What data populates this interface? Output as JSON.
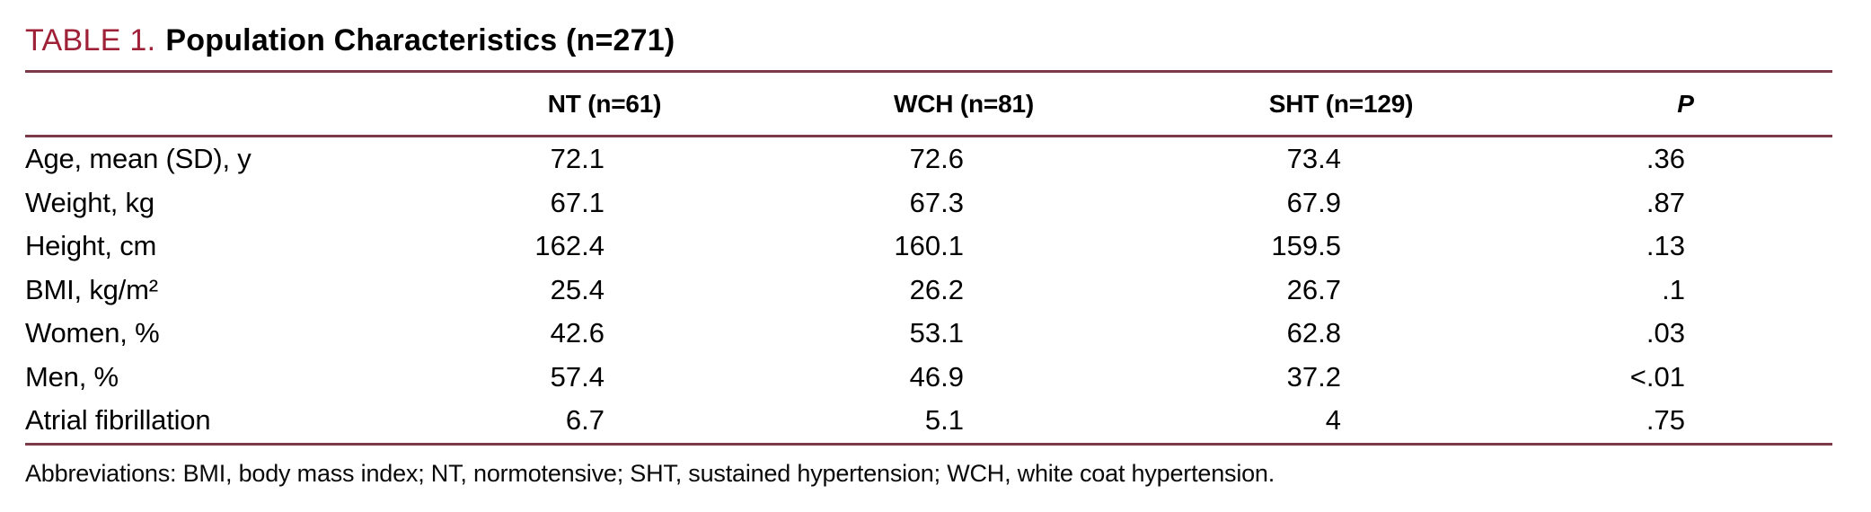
{
  "title": {
    "tag": "TABLE 1.",
    "text": "Population Characteristics (n=271)"
  },
  "table": {
    "columns": [
      "NT (n=61)",
      "WCH (n=81)",
      "SHT (n=129)",
      "P"
    ],
    "rows": [
      {
        "label": "Age, mean (SD), y",
        "values": [
          "72.1",
          "72.6",
          "73.4",
          ".36"
        ]
      },
      {
        "label": "Weight, kg",
        "values": [
          "67.1",
          "67.3",
          "67.9",
          ".87"
        ]
      },
      {
        "label": "Height, cm",
        "values": [
          "162.4",
          "160.1",
          "159.5",
          ".13"
        ]
      },
      {
        "label": "BMI, kg/m²",
        "values": [
          "25.4",
          "26.2",
          "26.7",
          ".1"
        ]
      },
      {
        "label": "Women, %",
        "values": [
          "42.6",
          "53.1",
          "62.8",
          ".03"
        ]
      },
      {
        "label": "Men, %",
        "values": [
          "57.4",
          "46.9",
          "37.2",
          "<.01"
        ]
      },
      {
        "label": "Atrial fibrillation",
        "values": [
          "6.7",
          "5.1",
          "4",
          ".75"
        ]
      }
    ]
  },
  "footnote": "Abbreviations: BMI, body mass index; NT, normotensive; SHT, sustained hypertension; WCH, white coat hypertension.",
  "colors": {
    "accent_red": "#9f2138",
    "rule": "#7d3b49"
  }
}
